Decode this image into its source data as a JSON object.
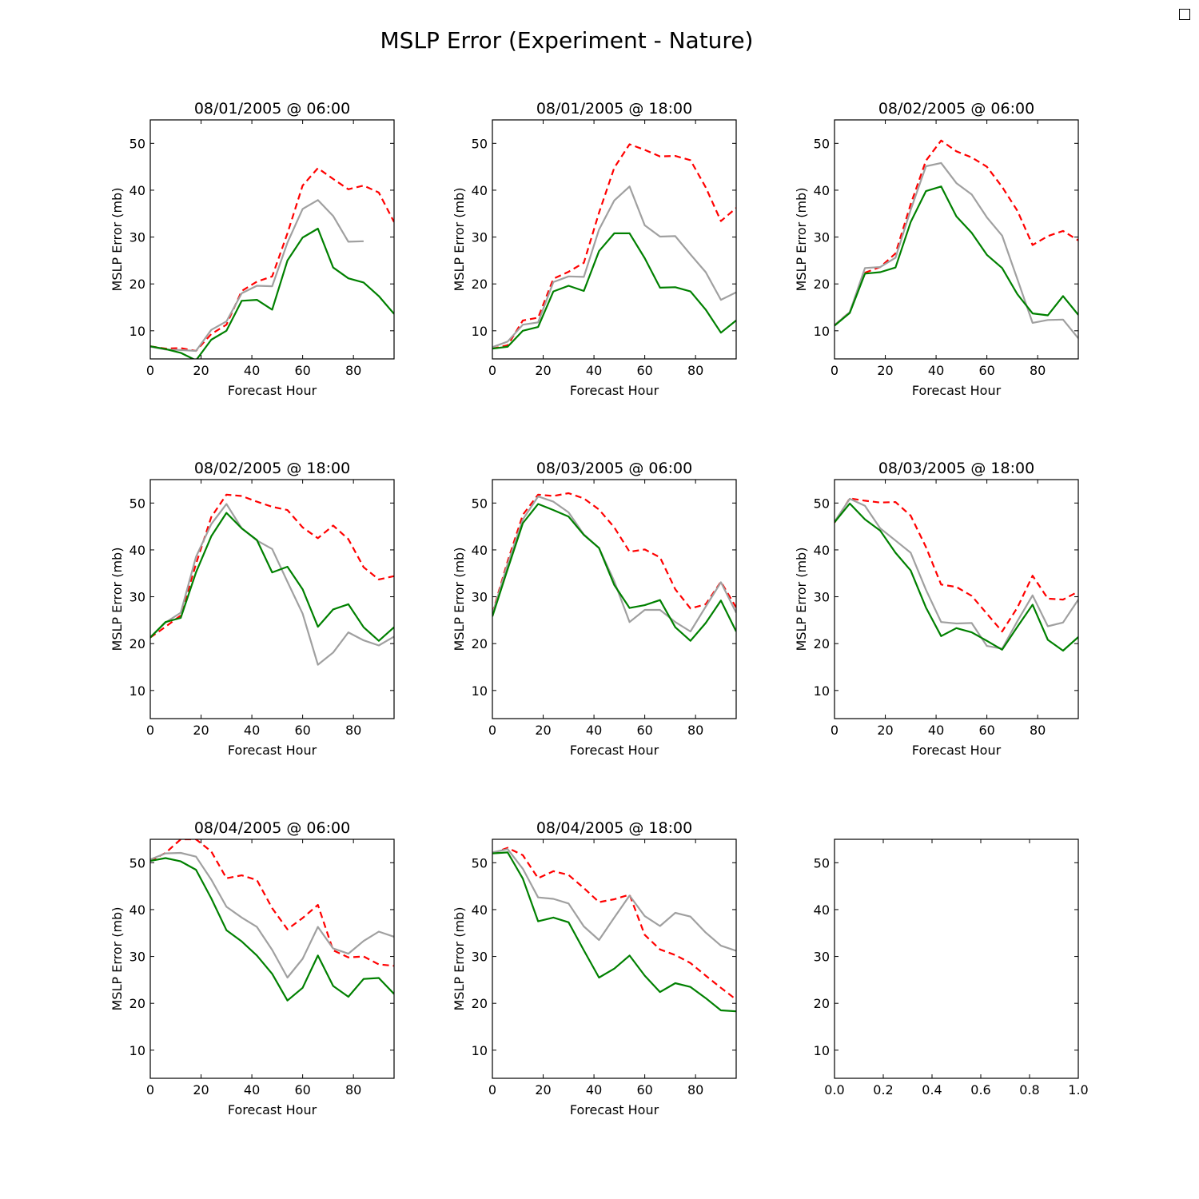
{
  "figure": {
    "title": "MSLP Error  (Experiment - Nature)"
  },
  "colors": {
    "series_dashed": "#ff0000",
    "series_gray": "#a0a0a0",
    "series_green": "#008000"
  },
  "chart_data": [
    {
      "type": "line",
      "title": "08/01/2005 @ 06:00",
      "xlabel": "Forecast Hour",
      "ylabel": "MSLP Error (mb)",
      "xlim": [
        0,
        96
      ],
      "ylim": [
        4,
        55
      ],
      "xticks": [
        "0",
        "20",
        "40",
        "60",
        "80"
      ],
      "yticks": [
        "10",
        "20",
        "30",
        "40",
        "50"
      ],
      "x": [
        0,
        6,
        12,
        18,
        24,
        30,
        36,
        42,
        48,
        54,
        60,
        66,
        72,
        78,
        84,
        90,
        96
      ],
      "series": [
        {
          "style": "dashed",
          "color": "#ff0000",
          "values": [
            6.7,
            6.2,
            6.3,
            5.7,
            9.3,
            11.3,
            18.5,
            20.5,
            21.6,
            30.8,
            41.0,
            44.7,
            42.4,
            40.2,
            41.0,
            39.5,
            33.2
          ]
        },
        {
          "style": "solid",
          "color": "#a0a0a0",
          "values": [
            6.6,
            6.0,
            5.9,
            5.7,
            10.2,
            12.0,
            18.0,
            19.6,
            19.5,
            28.8,
            36.0,
            37.9,
            34.5,
            29.0,
            29.1,
            null,
            null
          ]
        },
        {
          "style": "solid",
          "color": "#008000",
          "values": [
            6.7,
            6.1,
            5.3,
            3.7,
            8.1,
            10.0,
            16.4,
            16.6,
            14.5,
            25.0,
            29.9,
            31.8,
            23.5,
            21.2,
            20.3,
            17.4,
            13.6
          ]
        }
      ]
    },
    {
      "type": "line",
      "title": "08/01/2005 @ 18:00",
      "xlabel": "Forecast Hour",
      "ylabel": "MSLP Error (mb)",
      "xlim": [
        0,
        96
      ],
      "ylim": [
        4,
        55
      ],
      "xticks": [
        "0",
        "20",
        "40",
        "60",
        "80"
      ],
      "yticks": [
        "10",
        "20",
        "30",
        "40",
        "50"
      ],
      "x": [
        0,
        6,
        12,
        18,
        24,
        30,
        36,
        42,
        48,
        54,
        60,
        66,
        72,
        78,
        84,
        90,
        96
      ],
      "series": [
        {
          "style": "dashed",
          "color": "#ff0000",
          "values": [
            6.2,
            6.9,
            12.2,
            12.8,
            21.1,
            22.6,
            24.5,
            35.2,
            44.8,
            49.8,
            48.6,
            47.2,
            47.3,
            46.4,
            40.6,
            33.4,
            36.2
          ]
        },
        {
          "style": "solid",
          "color": "#a0a0a0",
          "values": [
            6.5,
            7.7,
            11.3,
            11.8,
            20.4,
            21.6,
            21.5,
            31.6,
            37.8,
            40.8,
            32.5,
            30.1,
            30.2,
            26.3,
            22.5,
            16.6,
            18.2
          ]
        },
        {
          "style": "solid",
          "color": "#008000",
          "values": [
            6.2,
            6.6,
            10.0,
            10.8,
            18.4,
            19.6,
            18.5,
            27.0,
            30.8,
            30.8,
            25.5,
            19.2,
            19.3,
            18.4,
            14.5,
            9.6,
            12.2
          ]
        }
      ]
    },
    {
      "type": "line",
      "title": "08/02/2005 @ 06:00",
      "xlabel": "Forecast Hour",
      "ylabel": "MSLP Error (mb)",
      "xlim": [
        0,
        96
      ],
      "ylim": [
        4,
        55
      ],
      "xticks": [
        "0",
        "20",
        "40",
        "60",
        "80"
      ],
      "yticks": [
        "10",
        "20",
        "30",
        "40",
        "50"
      ],
      "x": [
        0,
        6,
        12,
        18,
        24,
        30,
        36,
        42,
        48,
        54,
        60,
        66,
        72,
        78,
        84,
        90,
        96
      ],
      "series": [
        {
          "style": "dashed",
          "color": "#ff0000",
          "values": [
            11.2,
            14.0,
            22.4,
            23.6,
            26.5,
            37.0,
            46.3,
            50.6,
            48.3,
            47.0,
            45.0,
            40.7,
            35.6,
            28.3,
            30.2,
            31.3,
            29.3
          ]
        },
        {
          "style": "solid",
          "color": "#a0a0a0",
          "values": [
            11.2,
            14.0,
            23.4,
            23.6,
            25.6,
            35.8,
            45.1,
            45.8,
            41.5,
            39.1,
            34.2,
            30.3,
            21.0,
            11.7,
            12.3,
            12.4,
            8.4
          ]
        },
        {
          "style": "solid",
          "color": "#008000",
          "values": [
            11.1,
            13.8,
            22.2,
            22.5,
            23.5,
            33.2,
            39.8,
            40.8,
            34.4,
            30.9,
            26.2,
            23.4,
            17.8,
            13.7,
            13.3,
            17.4,
            13.4
          ]
        }
      ]
    },
    {
      "type": "line",
      "title": "08/02/2005 @ 18:00",
      "xlabel": "Forecast Hour",
      "ylabel": "MSLP Error (mb)",
      "xlim": [
        0,
        96
      ],
      "ylim": [
        4,
        55
      ],
      "xticks": [
        "0",
        "20",
        "40",
        "60",
        "80"
      ],
      "yticks": [
        "10",
        "20",
        "30",
        "40",
        "50"
      ],
      "x": [
        0,
        6,
        12,
        18,
        24,
        30,
        36,
        42,
        48,
        54,
        60,
        66,
        72,
        78,
        84,
        90,
        96
      ],
      "series": [
        {
          "style": "dashed",
          "color": "#ff0000",
          "values": [
            21.3,
            23.6,
            26.0,
            37.0,
            47.0,
            51.8,
            51.5,
            50.3,
            49.2,
            48.5,
            44.8,
            42.5,
            45.2,
            42.3,
            36.3,
            33.7,
            34.4
          ]
        },
        {
          "style": "solid",
          "color": "#a0a0a0",
          "values": [
            21.4,
            24.5,
            26.6,
            38.5,
            45.5,
            49.8,
            44.6,
            42.0,
            40.2,
            33.2,
            26.4,
            15.5,
            18.1,
            22.4,
            20.7,
            19.6,
            21.5
          ]
        },
        {
          "style": "solid",
          "color": "#008000",
          "values": [
            21.3,
            24.6,
            25.5,
            35.2,
            42.9,
            47.9,
            44.6,
            42.1,
            35.2,
            36.4,
            31.6,
            23.6,
            27.3,
            28.4,
            23.5,
            20.6,
            23.5
          ]
        }
      ]
    },
    {
      "type": "line",
      "title": "08/03/2005 @ 06:00",
      "xlabel": "Forecast Hour",
      "ylabel": "MSLP Error (mb)",
      "xlim": [
        0,
        96
      ],
      "ylim": [
        4,
        55
      ],
      "xticks": [
        "0",
        "20",
        "40",
        "60",
        "80"
      ],
      "yticks": [
        "10",
        "20",
        "30",
        "40",
        "50"
      ],
      "x": [
        0,
        6,
        12,
        18,
        24,
        30,
        36,
        42,
        48,
        54,
        60,
        66,
        72,
        78,
        84,
        90,
        96
      ],
      "series": [
        {
          "style": "dashed",
          "color": "#ff0000",
          "values": [
            26.5,
            37.6,
            47.5,
            51.8,
            51.5,
            52.1,
            51.0,
            48.6,
            44.8,
            39.6,
            40.1,
            38.4,
            31.6,
            27.5,
            28.4,
            33.2,
            27.7
          ]
        },
        {
          "style": "solid",
          "color": "#a0a0a0",
          "values": [
            26.3,
            37.0,
            46.5,
            51.4,
            50.3,
            48.0,
            43.3,
            40.4,
            33.3,
            24.6,
            27.2,
            27.2,
            24.6,
            22.6,
            27.9,
            33.1,
            26.6
          ]
        },
        {
          "style": "solid",
          "color": "#008000",
          "values": [
            25.8,
            35.9,
            45.7,
            49.8,
            48.5,
            47.1,
            43.2,
            40.4,
            32.5,
            27.6,
            28.2,
            29.3,
            23.5,
            20.6,
            24.4,
            29.2,
            22.6
          ]
        }
      ]
    },
    {
      "type": "line",
      "title": "08/03/2005 @ 18:00",
      "xlabel": "Forecast Hour",
      "ylabel": "MSLP Error (mb)",
      "xlim": [
        0,
        96
      ],
      "ylim": [
        4,
        55
      ],
      "xticks": [
        "0",
        "20",
        "40",
        "60",
        "80"
      ],
      "yticks": [
        "10",
        "20",
        "30",
        "40",
        "50"
      ],
      "x": [
        0,
        6,
        12,
        18,
        24,
        30,
        36,
        42,
        48,
        54,
        60,
        66,
        72,
        78,
        84,
        90,
        96
      ],
      "series": [
        {
          "style": "dashed",
          "color": "#ff0000",
          "values": [
            45.8,
            51.0,
            50.5,
            50.1,
            50.2,
            47.3,
            40.6,
            32.6,
            32.1,
            30.2,
            26.4,
            22.6,
            27.7,
            34.5,
            29.6,
            29.4,
            31.1
          ]
        },
        {
          "style": "solid",
          "color": "#a0a0a0",
          "values": [
            46.0,
            50.9,
            49.4,
            44.6,
            42.0,
            39.4,
            31.5,
            24.6,
            24.3,
            24.4,
            19.5,
            18.9,
            24.8,
            30.3,
            23.7,
            24.5,
            29.4
          ]
        },
        {
          "style": "solid",
          "color": "#008000",
          "values": [
            45.9,
            49.9,
            46.5,
            44.1,
            39.4,
            35.6,
            27.7,
            21.6,
            23.3,
            22.4,
            20.6,
            18.7,
            23.6,
            28.3,
            20.8,
            18.5,
            21.4
          ]
        }
      ]
    },
    {
      "type": "line",
      "title": "08/04/2005 @ 06:00",
      "xlabel": "Forecast Hour",
      "ylabel": "MSLP Error (mb)",
      "xlim": [
        0,
        96
      ],
      "ylim": [
        4,
        55
      ],
      "xticks": [
        "0",
        "20",
        "40",
        "60",
        "80"
      ],
      "yticks": [
        "10",
        "20",
        "30",
        "40",
        "50"
      ],
      "x": [
        0,
        6,
        12,
        18,
        24,
        30,
        36,
        42,
        48,
        54,
        60,
        66,
        72,
        78,
        84,
        90,
        96
      ],
      "series": [
        {
          "style": "dashed",
          "color": "#ff0000",
          "values": [
            50.4,
            52.1,
            55.0,
            55.0,
            52.4,
            46.7,
            47.3,
            46.3,
            40.3,
            35.8,
            38.2,
            41.0,
            31.3,
            29.8,
            30.0,
            28.3,
            28.0
          ]
        },
        {
          "style": "solid",
          "color": "#a0a0a0",
          "values": [
            50.7,
            52.0,
            52.1,
            51.3,
            46.4,
            40.6,
            38.3,
            36.3,
            31.4,
            25.5,
            29.5,
            36.3,
            31.7,
            30.6,
            33.3,
            35.3,
            34.2
          ]
        },
        {
          "style": "solid",
          "color": "#008000",
          "values": [
            50.4,
            51.0,
            50.3,
            48.5,
            42.4,
            35.6,
            33.2,
            30.2,
            26.3,
            20.6,
            23.3,
            30.2,
            23.7,
            21.4,
            25.2,
            25.4,
            22.0
          ]
        }
      ]
    },
    {
      "type": "line",
      "title": "08/04/2005 @ 18:00",
      "xlabel": "Forecast Hour",
      "ylabel": "MSLP Error (mb)",
      "xlim": [
        0,
        96
      ],
      "ylim": [
        4,
        55
      ],
      "xticks": [
        "0",
        "20",
        "40",
        "60",
        "80"
      ],
      "yticks": [
        "10",
        "20",
        "30",
        "40",
        "50"
      ],
      "x": [
        0,
        6,
        12,
        18,
        24,
        30,
        36,
        42,
        48,
        54,
        60,
        66,
        72,
        78,
        84,
        90,
        96
      ],
      "series": [
        {
          "style": "dashed",
          "color": "#ff0000",
          "values": [
            52.0,
            53.2,
            51.6,
            46.7,
            48.2,
            47.4,
            44.6,
            41.6,
            42.2,
            43.2,
            34.6,
            31.5,
            30.3,
            28.6,
            25.9,
            23.3,
            20.8
          ]
        },
        {
          "style": "solid",
          "color": "#a0a0a0",
          "values": [
            52.2,
            52.9,
            48.7,
            42.6,
            42.3,
            41.3,
            36.4,
            33.5,
            38.3,
            43.0,
            38.6,
            36.5,
            39.3,
            38.5,
            35.1,
            32.3,
            31.2
          ]
        },
        {
          "style": "solid",
          "color": "#008000",
          "values": [
            52.0,
            52.2,
            46.6,
            37.5,
            38.3,
            37.3,
            31.3,
            25.5,
            27.4,
            30.2,
            25.9,
            22.4,
            24.3,
            23.5,
            21.1,
            18.5,
            18.3
          ]
        }
      ]
    },
    {
      "type": "line",
      "title": "",
      "xlabel": "",
      "ylabel": "",
      "xlim": [
        0.0,
        1.0
      ],
      "ylim": [
        4,
        55
      ],
      "xticks": [
        "0.0",
        "0.2",
        "0.4",
        "0.6",
        "0.8",
        "1.0"
      ],
      "yticks": [
        "10",
        "20",
        "30",
        "40",
        "50"
      ],
      "x": [],
      "series": []
    }
  ]
}
